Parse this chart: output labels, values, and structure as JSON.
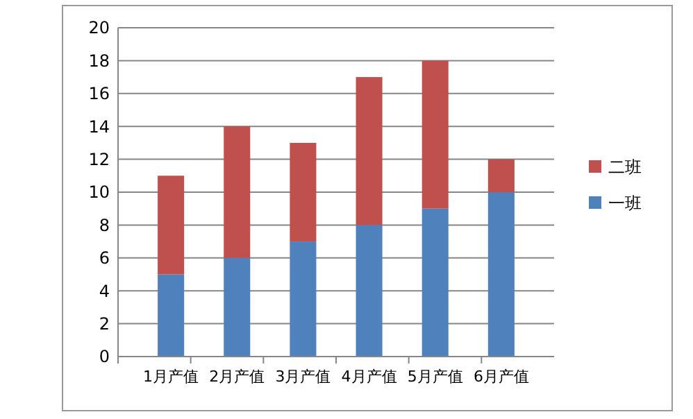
{
  "chart_data": {
    "type": "bar",
    "stacked": true,
    "categories": [
      "1月产值",
      "2月产值",
      "3月产值",
      "4月产值",
      "5月产值",
      "6月产值"
    ],
    "series": [
      {
        "name": "一班",
        "color": "#4f81bd",
        "values": [
          5,
          6,
          7,
          8,
          9,
          10
        ]
      },
      {
        "name": "二班",
        "color": "#c0504d",
        "values": [
          6,
          8,
          6,
          9,
          9,
          2
        ]
      }
    ],
    "ylim": [
      0,
      20
    ],
    "yticks": [
      0,
      2,
      4,
      6,
      8,
      10,
      12,
      14,
      16,
      18,
      20
    ],
    "grid": "y",
    "legend": "right"
  }
}
